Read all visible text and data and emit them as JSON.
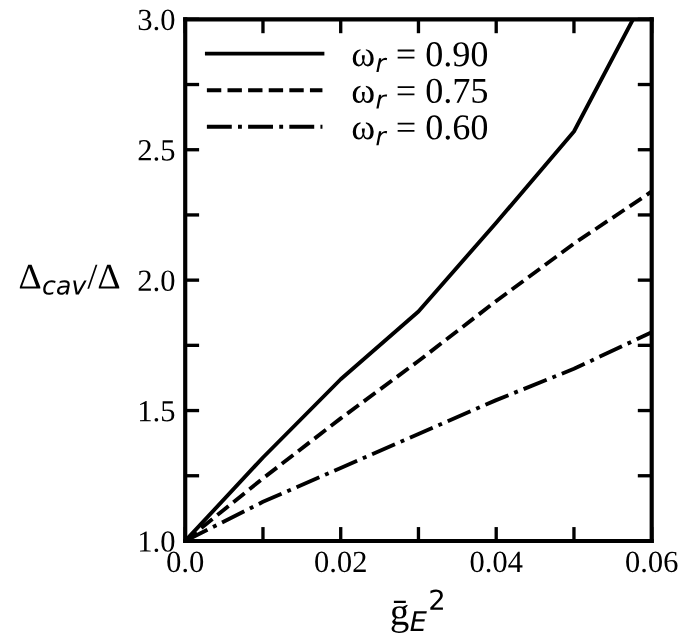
{
  "chart_data": {
    "type": "line",
    "xlabel": "ḡ$_{E}$$^{2}$",
    "ylabel": "Δ$_{cav}$/Δ",
    "xlim": [
      0,
      0.06
    ],
    "ylim": [
      1.0,
      3.0
    ],
    "xticks": [
      {
        "value": 0,
        "label": "0.0"
      },
      {
        "value": 0.01,
        "label": null
      },
      0.02,
      {
        "value": 0.03,
        "label": null
      },
      0.04,
      {
        "value": 0.05,
        "label": null
      },
      0.06
    ],
    "yticks": [
      {
        "value": 1.0,
        "label": "1.0"
      },
      {
        "value": 1.25,
        "label": null
      },
      1.5,
      {
        "value": 1.75,
        "label": null
      },
      {
        "value": 2.0,
        "label": "2.0"
      },
      {
        "value": 2.25,
        "label": null
      },
      2.5,
      {
        "value": 2.75,
        "label": null
      },
      {
        "value": 3.0,
        "label": "3.0"
      }
    ],
    "legend": "top left",
    "grid": false,
    "series": [
      {
        "name": "ω$_{r}$ = 0.90",
        "color": "#000000",
        "line_style": "solid",
        "x": [
          0,
          0.01,
          0.02,
          0.03,
          0.04,
          0.05,
          0.0576
        ],
        "values": [
          1.0,
          1.32,
          1.62,
          1.88,
          2.22,
          2.57,
          3.0
        ]
      },
      {
        "name": "ω$_{r}$ = 0.75",
        "color": "#000000",
        "line_style": "dashed",
        "x": [
          0,
          0.01,
          0.02,
          0.03,
          0.04,
          0.05,
          0.06
        ],
        "values": [
          1.0,
          1.24,
          1.47,
          1.69,
          1.92,
          2.14,
          2.34
        ]
      },
      {
        "name": "ω$_{r}$ = 0.60",
        "color": "#000000",
        "line_style": "dashdot",
        "x": [
          0,
          0.01,
          0.02,
          0.03,
          0.04,
          0.05,
          0.06
        ],
        "values": [
          1.0,
          1.15,
          1.28,
          1.41,
          1.54,
          1.66,
          1.8
        ]
      }
    ]
  }
}
